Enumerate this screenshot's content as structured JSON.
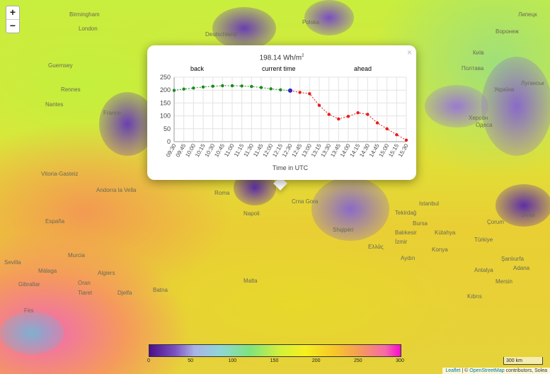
{
  "map": {
    "zoom_in": "+",
    "zoom_out": "−",
    "scale_label": "300 km",
    "attribution": {
      "leaflet": "Leaflet",
      "sep": "| ©",
      "osm": "OpenStreetMap",
      "rest": "contributors, Solea"
    },
    "place_labels": [
      {
        "text": "Birmingham"
      },
      {
        "text": "London"
      },
      {
        "text": "Guernsey"
      },
      {
        "text": "Rennes"
      },
      {
        "text": "Nantes"
      },
      {
        "text": "France"
      },
      {
        "text": "Vitoria-Gasteiz"
      },
      {
        "text": "Andorra la Vella"
      },
      {
        "text": "España"
      },
      {
        "text": "Murcia"
      },
      {
        "text": "Sevilla"
      },
      {
        "text": "Málaga"
      },
      {
        "text": "Gibraltar"
      },
      {
        "text": "Fès"
      },
      {
        "text": "Oran"
      },
      {
        "text": "Algiers"
      },
      {
        "text": "Tiaret"
      },
      {
        "text": "Djelfa"
      },
      {
        "text": "Batna"
      },
      {
        "text": "Roma"
      },
      {
        "text": "Napoli"
      },
      {
        "text": "Malta"
      },
      {
        "text": "Polska"
      },
      {
        "text": "Deutschland"
      },
      {
        "text": "Istanbul"
      },
      {
        "text": "Tekirdağ"
      },
      {
        "text": "Bursa"
      },
      {
        "text": "Balıkesir"
      },
      {
        "text": "Kütahya"
      },
      {
        "text": "İzmir"
      },
      {
        "text": "Aydın"
      },
      {
        "text": "Konya"
      },
      {
        "text": "Antalya"
      },
      {
        "text": "Kıbrıs"
      },
      {
        "text": "Mersin"
      },
      {
        "text": "Adana"
      },
      {
        "text": "Şanlıurfa"
      },
      {
        "text": "Çorum"
      },
      {
        "text": "Sivas"
      },
      {
        "text": "Одеса"
      },
      {
        "text": "Херсон"
      },
      {
        "text": "Полтава"
      },
      {
        "text": "Київ"
      },
      {
        "text": "Україна"
      },
      {
        "text": "Липецк"
      },
      {
        "text": "Луганськ"
      },
      {
        "text": "Воронеж"
      },
      {
        "text": "Crna Gora"
      },
      {
        "text": "Shqipëri"
      },
      {
        "text": "Ελλάς"
      },
      {
        "text": "Türkiye"
      }
    ]
  },
  "popup": {
    "close": "×",
    "value_text": "198.14 Wh/m",
    "value_sup": "2",
    "headers": {
      "back": "back",
      "current": "current time",
      "ahead": "ahead"
    },
    "colors": {
      "back": "#1a8a1a",
      "current": "#1a1ae6",
      "ahead": "#e61a1a"
    }
  },
  "chart_data": {
    "type": "scatter",
    "title": "",
    "xlabel": "Time in UTC",
    "ylabel": "",
    "ylim": [
      0,
      250
    ],
    "yticks": [
      0,
      50,
      100,
      150,
      200,
      250
    ],
    "categories": [
      "09:30",
      "09:45",
      "10:00",
      "10:15",
      "10:30",
      "10:45",
      "11:00",
      "11:15",
      "11:30",
      "11:45",
      "12:00",
      "12:15",
      "12:30",
      "12:45",
      "13:00",
      "13:15",
      "13:30",
      "13:45",
      "14:00",
      "14:15",
      "14:30",
      "14:45",
      "15:00",
      "15:15",
      "15:30"
    ],
    "series": [
      {
        "name": "back",
        "color": "#1a8a1a",
        "x": [
          "09:30",
          "09:45",
          "10:00",
          "10:15",
          "10:30",
          "10:45",
          "11:00",
          "11:15",
          "11:30",
          "11:45",
          "12:00",
          "12:15"
        ],
        "values": [
          199,
          204,
          208,
          212,
          215,
          217,
          217,
          216,
          214,
          210,
          205,
          201
        ]
      },
      {
        "name": "current time",
        "color": "#1a1ae6",
        "x": [
          "12:30"
        ],
        "values": [
          198.14
        ]
      },
      {
        "name": "ahead",
        "color": "#e61a1a",
        "x": [
          "12:45",
          "13:00",
          "13:15",
          "13:30",
          "13:45",
          "14:00",
          "14:15",
          "14:30",
          "14:45",
          "15:00",
          "15:15",
          "15:30"
        ],
        "values": [
          191,
          186,
          141,
          106,
          88,
          98,
          112,
          106,
          73,
          50,
          27,
          6
        ]
      }
    ],
    "grid": true
  },
  "colorbar": {
    "ticks": [
      "0",
      "50",
      "100",
      "150",
      "200",
      "250",
      "300"
    ]
  }
}
